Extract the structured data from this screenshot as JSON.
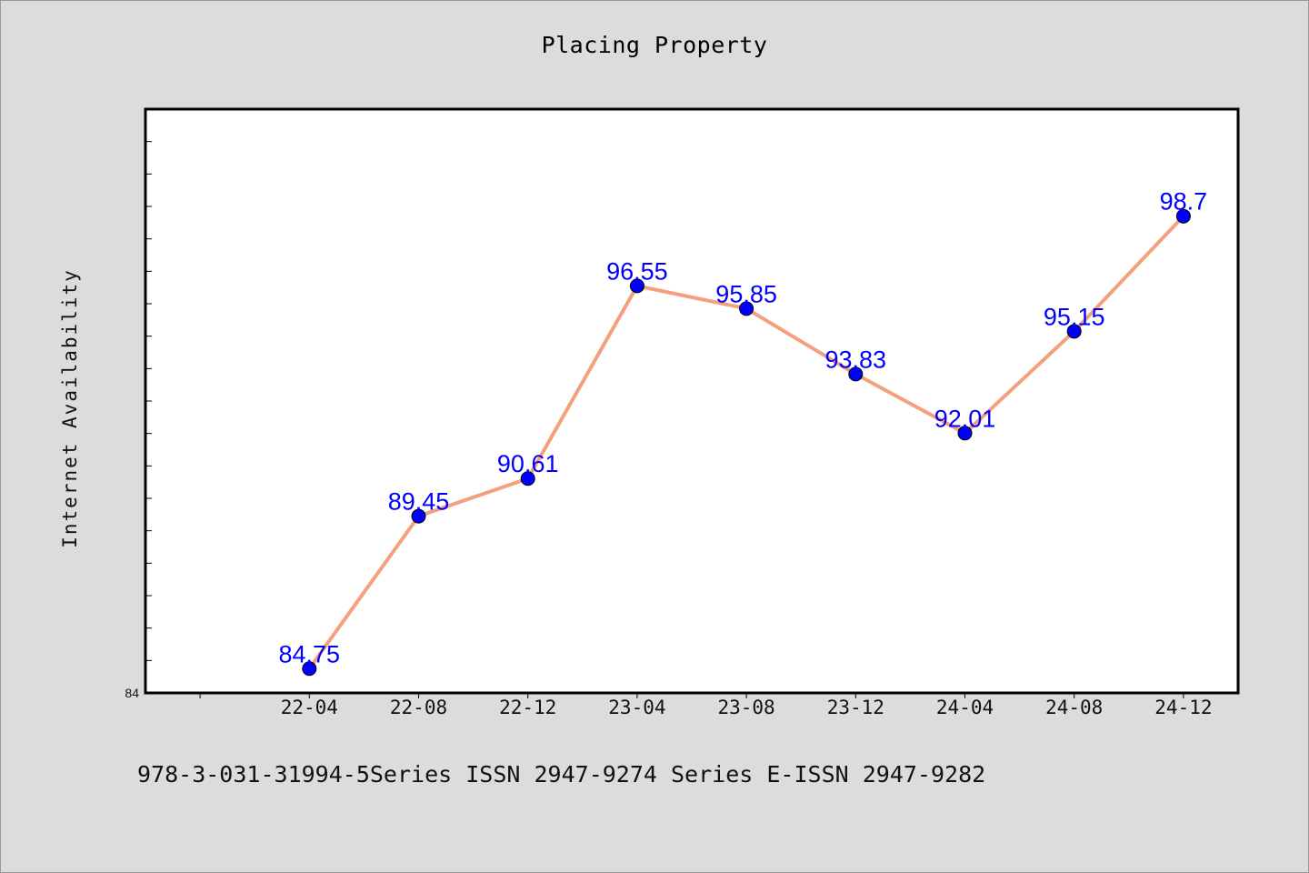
{
  "chart_data": {
    "type": "line",
    "title": "Placing Property",
    "xlabel": "",
    "ylabel": "Internet Availability",
    "categories": [
      "22-04",
      "22-08",
      "22-12",
      "23-04",
      "23-08",
      "23-12",
      "24-04",
      "24-08",
      "24-12"
    ],
    "values": [
      84.75,
      89.45,
      90.61,
      96.55,
      95.85,
      93.83,
      92.01,
      95.15,
      98.7
    ],
    "data_labels": [
      "84.75",
      "89.45",
      "90.61",
      "96.55",
      "95.85",
      "93.83",
      "92.01",
      "95.15",
      "98.7"
    ],
    "y_tick_label": "84",
    "ylim": [
      84,
      102
    ],
    "grid": false,
    "legend": "none",
    "line_color": "#f4a07c",
    "marker_color": "#0000ff",
    "label_color": "#0000ff"
  },
  "footer": {
    "text": "978-3-031-31994-5Series ISSN 2947-9274 Series E-ISSN 2947-9282"
  }
}
